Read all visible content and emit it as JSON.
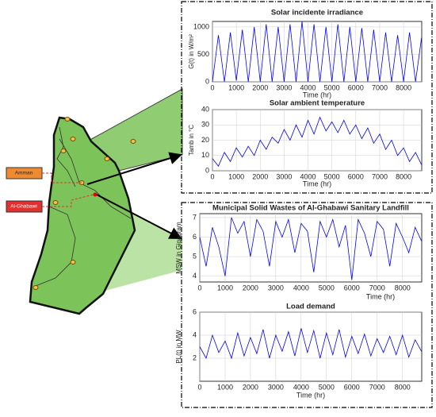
{
  "map": {
    "labels": [
      "Amman",
      "Al-Ghabawi"
    ]
  },
  "chart_data": [
    {
      "type": "line",
      "title": "Solar incidente irradiance",
      "xlabel": "Time (hr)",
      "ylabel": "G(t) in W/m²",
      "color": "#0000ff",
      "grid": true,
      "x": [
        0,
        250,
        500,
        750,
        1000,
        1250,
        1500,
        1750,
        2000,
        2250,
        2500,
        2750,
        3000,
        3250,
        3500,
        3750,
        4000,
        4250,
        4500,
        4750,
        5000,
        5250,
        5500,
        5750,
        6000,
        6250,
        6500,
        6750,
        7000,
        7250,
        7500,
        7750,
        8000,
        8250,
        8500,
        8750
      ],
      "values": [
        0,
        850,
        0,
        900,
        20,
        950,
        0,
        1000,
        0,
        1050,
        0,
        1000,
        0,
        1050,
        0,
        1100,
        0,
        1050,
        0,
        1000,
        0,
        1050,
        0,
        1000,
        0,
        980,
        0,
        950,
        0,
        900,
        0,
        850,
        0,
        900,
        0,
        800
      ],
      "xlim": [
        0,
        8760
      ],
      "xticks": [
        0,
        1000,
        2000,
        3000,
        4000,
        5000,
        6000,
        7000,
        8000
      ],
      "ylim": [
        0,
        1100
      ],
      "yticks": [
        0,
        500,
        1000
      ]
    },
    {
      "type": "line",
      "title": "Solar ambient temperature",
      "xlabel": "Time (hr)",
      "ylabel": "Tamb in °C",
      "color": "#0000ff",
      "grid": true,
      "x": [
        0,
        250,
        500,
        750,
        1000,
        1250,
        1500,
        1750,
        2000,
        2250,
        2500,
        2750,
        3000,
        3250,
        3500,
        3750,
        4000,
        4250,
        4500,
        4750,
        5000,
        5250,
        5500,
        5750,
        6000,
        6250,
        6500,
        6750,
        7000,
        7250,
        7500,
        7750,
        8000,
        8250,
        8500,
        8750
      ],
      "values": [
        8,
        3,
        12,
        6,
        15,
        9,
        16,
        10,
        20,
        14,
        22,
        18,
        27,
        20,
        30,
        22,
        33,
        24,
        35,
        26,
        32,
        25,
        33,
        24,
        30,
        21,
        28,
        18,
        24,
        14,
        20,
        10,
        15,
        6,
        12,
        4
      ],
      "xlim": [
        0,
        8760
      ],
      "xticks": [
        0,
        1000,
        2000,
        3000,
        4000,
        5000,
        6000,
        7000,
        8000
      ],
      "ylim": [
        0,
        40
      ],
      "yticks": [
        0,
        10,
        20,
        30,
        40
      ]
    },
    {
      "type": "line",
      "title": "Municipal Solid Wastes of Al-Ghabawi Sanitary Landfill",
      "xlabel": "Time (hr)",
      "ylabel": "MSW in Gigagram",
      "color": "#0000ff",
      "grid": true,
      "x": [
        0,
        250,
        500,
        750,
        1000,
        1250,
        1500,
        1750,
        2000,
        2250,
        2500,
        2750,
        3000,
        3250,
        3500,
        3750,
        4000,
        4250,
        4500,
        4750,
        5000,
        5250,
        5500,
        5750,
        6000,
        6250,
        6500,
        6750,
        7000,
        7250,
        7500,
        7750,
        8000,
        8250,
        8500,
        8750
      ],
      "values": [
        6,
        4.5,
        6.5,
        5.5,
        4,
        7,
        6.2,
        6.8,
        5,
        6.9,
        6.3,
        4.5,
        6.8,
        6,
        6.9,
        5.2,
        6.7,
        6.3,
        4.2,
        6.8,
        6,
        6.9,
        5.5,
        6.6,
        3.8,
        6.9,
        6.2,
        5,
        6.8,
        6.4,
        4.5,
        6.7,
        6,
        5.2,
        6.5,
        5.8
      ],
      "xlim": [
        0,
        8760
      ],
      "xticks": [
        0,
        1000,
        2000,
        3000,
        4000,
        5000,
        6000,
        7000,
        8000
      ],
      "ylim": [
        3.7,
        7.2
      ],
      "yticks": [
        4,
        5,
        6,
        7
      ]
    },
    {
      "type": "line",
      "title": "Load demand",
      "xlabel": "Time (hr)",
      "ylabel": "PL(t) in MW",
      "color": "#0000ff",
      "grid": true,
      "x": [
        0,
        250,
        500,
        750,
        1000,
        1250,
        1500,
        1750,
        2000,
        2250,
        2500,
        2750,
        3000,
        3250,
        3500,
        3750,
        4000,
        4250,
        4500,
        4750,
        5000,
        5250,
        5500,
        5750,
        6000,
        6250,
        6500,
        6750,
        7000,
        7250,
        7500,
        7750,
        8000,
        8250,
        8500,
        8750
      ],
      "values": [
        3,
        2,
        4,
        2.5,
        3.5,
        2,
        4.2,
        2.2,
        3.8,
        2.4,
        4.5,
        2,
        4,
        2.6,
        4.3,
        2.2,
        4.6,
        2.5,
        4.4,
        2,
        4.2,
        2.3,
        4.5,
        2.1,
        3.9,
        2.4,
        4.1,
        2.2,
        3.7,
        2.5,
        3.9,
        2.3,
        4,
        2.1,
        3.6,
        2.6
      ],
      "xlim": [
        0,
        8760
      ],
      "xticks": [
        0,
        1000,
        2000,
        3000,
        4000,
        5000,
        6000,
        7000,
        8000
      ],
      "ylim": [
        0,
        6
      ],
      "yticks": [
        2,
        4,
        6
      ]
    }
  ]
}
